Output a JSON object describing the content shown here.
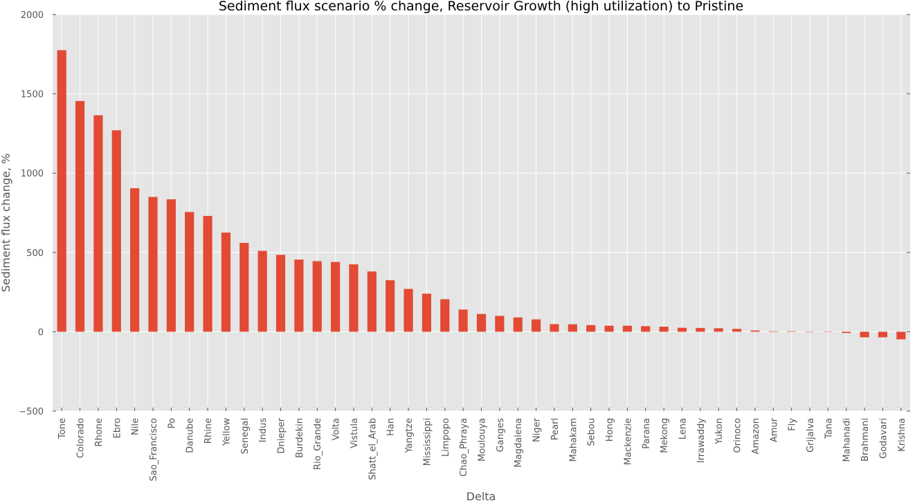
{
  "chart_data": {
    "type": "bar",
    "title": "Sediment flux scenario % change, Reservoir Growth (high utilization) to Pristine",
    "xlabel": "Delta",
    "ylabel": "Sediment flux change, %",
    "ylim": [
      -500,
      2000
    ],
    "yticks": [
      -500,
      0,
      500,
      1000,
      1500,
      2000
    ],
    "ytick_labels": [
      "−500",
      "0",
      "500",
      "1000",
      "1500",
      "2000"
    ],
    "grid": true,
    "bar_color": "#E24A33",
    "background_color": "#E5E5E5",
    "grid_color": "#FFFFFF",
    "categories": [
      "Tone",
      "Colorado",
      "Rhone",
      "Ebro",
      "Nile",
      "Sao_Francisco",
      "Po",
      "Danube",
      "Rhine",
      "Yellow",
      "Senegal",
      "Indus",
      "Dnieper",
      "Burdekin",
      "Rio_Grande",
      "Volta",
      "Vistula",
      "Shatt_el_Arab",
      "Han",
      "Yangtze",
      "Mississippi",
      "Limpopo",
      "Chao_Phraya",
      "Moulouya",
      "Ganges",
      "Magdalena",
      "Niger",
      "Pearl",
      "Mahakam",
      "Sebou",
      "Hong",
      "Mackenzie",
      "Parana",
      "Mekong",
      "Lena",
      "Irrawaddy",
      "Yukon",
      "Orinoco",
      "Amazon",
      "Amur",
      "Fly",
      "Grijalva",
      "Tana",
      "Mahanadi",
      "Brahmani",
      "Godavari",
      "Krishna"
    ],
    "values": [
      1775,
      1455,
      1365,
      1270,
      905,
      850,
      835,
      755,
      730,
      625,
      560,
      510,
      485,
      455,
      445,
      440,
      425,
      380,
      325,
      270,
      240,
      205,
      140,
      112,
      100,
      90,
      78,
      48,
      47,
      42,
      38,
      38,
      35,
      32,
      25,
      24,
      22,
      18,
      8,
      3,
      3,
      0,
      0,
      -8,
      -35,
      -35,
      -48
    ]
  }
}
